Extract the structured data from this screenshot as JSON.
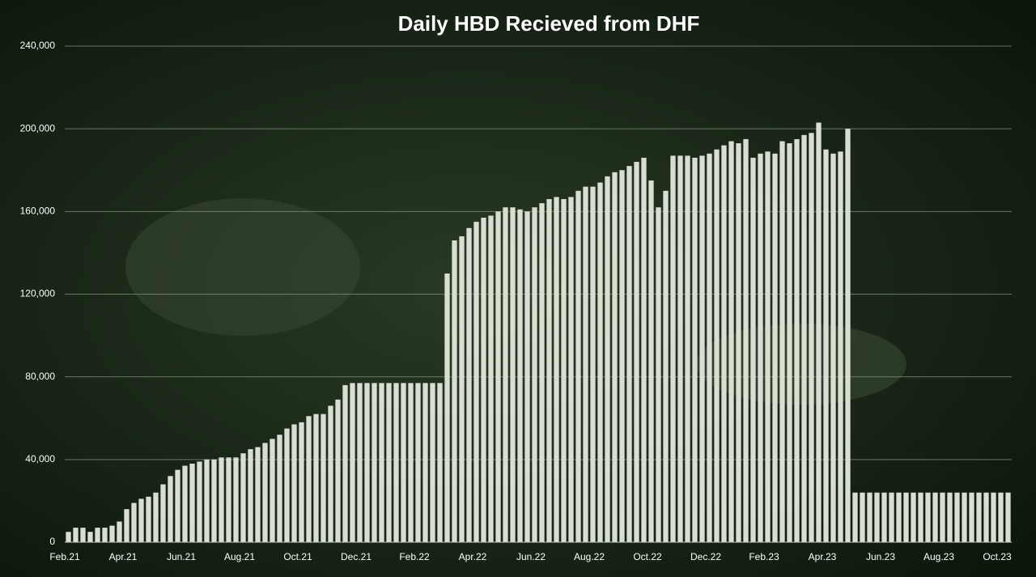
{
  "chart_data": {
    "type": "bar",
    "title": "Daily HBD Recieved from DHF",
    "color": "#d9ded2",
    "categories": [
      "Feb.21",
      null,
      null,
      null,
      null,
      null,
      null,
      null,
      "Apr.21",
      null,
      null,
      null,
      null,
      null,
      null,
      null,
      "Jun.21",
      null,
      null,
      null,
      null,
      null,
      null,
      null,
      "Aug.21",
      null,
      null,
      null,
      null,
      null,
      null,
      null,
      "Oct.21",
      null,
      null,
      null,
      null,
      null,
      null,
      null,
      "Dec.21",
      null,
      null,
      null,
      null,
      null,
      null,
      null,
      "Feb.22",
      null,
      null,
      null,
      null,
      null,
      null,
      null,
      "Apr.22",
      null,
      null,
      null,
      null,
      null,
      null,
      null,
      "Jun.22",
      null,
      null,
      null,
      null,
      null,
      null,
      null,
      "Aug.22",
      null,
      null,
      null,
      null,
      null,
      null,
      null,
      "Oct.22",
      null,
      null,
      null,
      null,
      null,
      null,
      null,
      "Dec.22",
      null,
      null,
      null,
      null,
      null,
      null,
      null,
      "Feb.23",
      null,
      null,
      null,
      null,
      null,
      null,
      null,
      "Apr.23",
      null,
      null,
      null,
      null,
      null,
      null,
      null,
      "Jun.23",
      null,
      null,
      null,
      null,
      null,
      null,
      null,
      "Aug.23",
      null,
      null,
      null,
      null,
      null,
      null,
      null,
      "Oct.23",
      null
    ],
    "values": [
      5000,
      7000,
      7000,
      5000,
      7000,
      7000,
      8000,
      10000,
      16000,
      19000,
      21000,
      22000,
      24000,
      28000,
      32000,
      35000,
      37000,
      38000,
      39000,
      40000,
      40000,
      41000,
      41000,
      41000,
      43000,
      45000,
      46000,
      48000,
      50000,
      52000,
      55000,
      57000,
      58000,
      61000,
      62000,
      62000,
      66000,
      69000,
      76000,
      77000,
      77000,
      77000,
      77000,
      77000,
      77000,
      77000,
      77000,
      77000,
      77000,
      77000,
      77000,
      77000,
      130000,
      146000,
      148000,
      152000,
      155000,
      157000,
      158000,
      160000,
      162000,
      162000,
      161000,
      160000,
      162000,
      164000,
      166000,
      167000,
      166000,
      167000,
      170000,
      172000,
      172000,
      174000,
      177000,
      179000,
      180000,
      182000,
      184000,
      186000,
      175000,
      162000,
      170000,
      187000,
      187000,
      187000,
      186000,
      187000,
      188000,
      190000,
      192000,
      194000,
      193000,
      195000,
      186000,
      188000,
      189000,
      188000,
      194000,
      193000,
      195000,
      197000,
      198000,
      203000,
      190000,
      188000,
      189000,
      200000,
      24000,
      24000,
      24000,
      24000,
      24000,
      24000,
      24000,
      24000,
      24000,
      24000,
      24000,
      24000,
      24000,
      24000,
      24000,
      24000,
      24000,
      24000,
      24000,
      24000,
      24000,
      24000
    ],
    "ylim": [
      0,
      240000
    ],
    "yticks": [
      0,
      {
        "value": 40000,
        "label": "40,000"
      },
      {
        "value": 80000,
        "label": "80,000"
      },
      {
        "value": 120000,
        "label": "120,000"
      },
      {
        "value": 160000,
        "label": "160,000"
      },
      {
        "value": 200000,
        "label": "200,000"
      },
      {
        "value": 240000,
        "label": "240,000"
      }
    ],
    "grid": true
  }
}
